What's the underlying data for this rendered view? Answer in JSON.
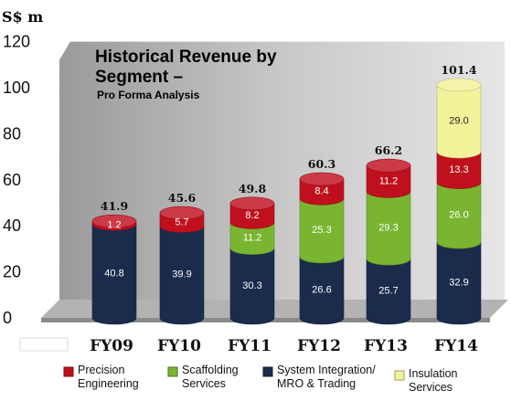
{
  "chart_data": {
    "type": "bar",
    "stacked": true,
    "title": "Historical Revenue by Segment –",
    "subtitle": "Pro Forma Analysis",
    "unit_label": "S$ m",
    "ylim": [
      0,
      120
    ],
    "yticks": [
      0,
      20,
      40,
      60,
      80,
      100,
      120
    ],
    "categories": [
      "FY09",
      "FY10",
      "FY11",
      "FY12",
      "FY13",
      "FY14"
    ],
    "totals": [
      "41.9",
      "45.6",
      "49.8",
      "60.3",
      "66.2",
      "101.4"
    ],
    "series": [
      {
        "name": "System Integration/ MRO & Trading",
        "color": "#1b2b4c",
        "label_color": "#ffffff",
        "values": [
          40.8,
          39.9,
          30.3,
          26.6,
          25.7,
          32.9
        ]
      },
      {
        "name": "Scaffolding Services",
        "color": "#7ab531",
        "label_color": "#ffffff",
        "values": [
          0,
          0,
          11.2,
          25.3,
          29.3,
          26.0
        ]
      },
      {
        "name": "Precision Engineering",
        "color": "#c0101e",
        "label_color": "#ffffff",
        "values": [
          1.2,
          5.7,
          8.2,
          8.4,
          11.2,
          13.3
        ]
      },
      {
        "name": "Insulation Services",
        "color": "#f2f29a",
        "label_color": "#222222",
        "values": [
          0,
          0,
          0,
          0,
          0,
          29.0
        ]
      }
    ],
    "segment_label_texts": [
      [
        "40.8",
        "39.9",
        "30.3",
        "26.6",
        "25.7",
        "32.9"
      ],
      [
        "",
        "",
        "11.2",
        "25.3",
        "29.3",
        "26.0"
      ],
      [
        "1.2",
        "5.7",
        "8.2",
        "8.4",
        "11.2",
        "13.3"
      ],
      [
        "",
        "",
        "",
        "",
        "",
        "29.0"
      ]
    ],
    "legend": [
      {
        "line1": "Precision",
        "line2": "Engineering",
        "color": "#c0101e"
      },
      {
        "line1": "Scaffolding",
        "line2": "Services",
        "color": "#7ab531"
      },
      {
        "line1": "System Integration/",
        "line2": "MRO & Trading",
        "color": "#1b2b4c"
      },
      {
        "line1": "Insulation",
        "line2": "Services",
        "color": "#f2f29a"
      }
    ]
  }
}
